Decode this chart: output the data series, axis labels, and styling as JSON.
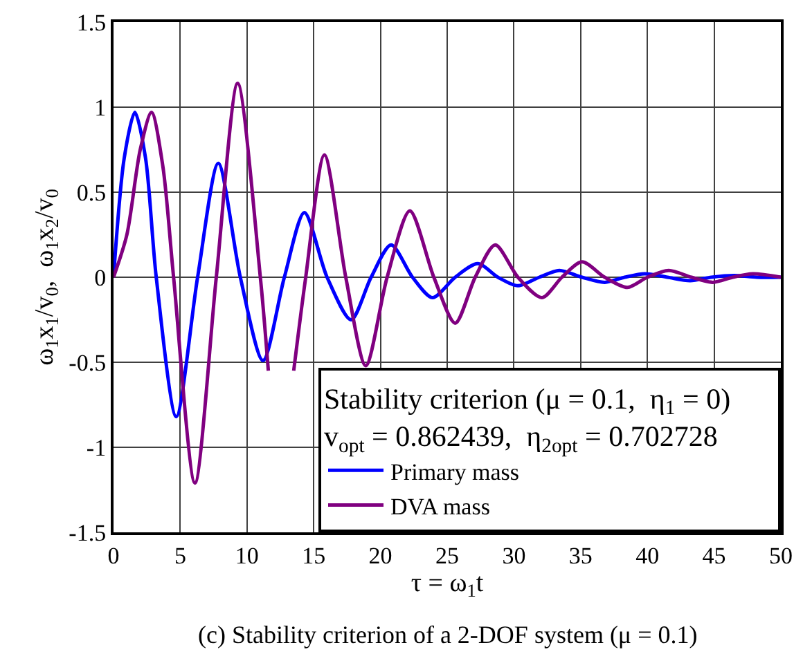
{
  "chart_data": {
    "type": "line",
    "xlabel": "τ = ω$_{1}$t",
    "ylabel": "ω$_{1}$x$_{1}$/v$_{0}$,  ω$_{1}$x$_{2}$/v$_{0}$",
    "legend_title": "Stability criterion (μ = 0.1,  η$_{1}$ = 0)\nv$_{opt}$ = 0.862439,  η$_{2opt}$ = 0.702728",
    "annotations": [
      "(c) Stability criterion of a 2-DOF system (μ = 0.1)"
    ],
    "series": [
      {
        "name": "Primary mass",
        "color": "#0000ff",
        "x": [
          0,
          0.8,
          1.6,
          2.4,
          3.2,
          4.7,
          6.3,
          7.85,
          9.5,
          11.2,
          12.8,
          14.3,
          16.0,
          17.8,
          19.3,
          20.8,
          22.4,
          23.9,
          25.6,
          27.3,
          28.8,
          30.3,
          31.9,
          33.4,
          35.1,
          36.8,
          38.3,
          39.8,
          41.5,
          43.2,
          44.8,
          46.5,
          48.2,
          50
        ],
        "values": [
          0,
          0.7,
          0.97,
          0.7,
          0,
          -0.82,
          0,
          0.67,
          0,
          -0.49,
          0,
          0.38,
          0,
          -0.25,
          0,
          0.19,
          0,
          -0.12,
          0,
          0.08,
          0,
          -0.05,
          0,
          0.04,
          0,
          -0.03,
          0,
          0.02,
          0,
          -0.02,
          0,
          0.01,
          0,
          0
        ]
      },
      {
        "name": "DVA mass",
        "color": "#800080",
        "x": [
          0,
          1.0,
          2.0,
          2.85,
          3.7,
          4.5,
          6.1,
          7.7,
          9.3,
          11.0,
          11.6,
          12.5,
          13.5,
          14.4,
          15.8,
          17.4,
          18.9,
          20.5,
          22.2,
          24.0,
          25.6,
          27.1,
          28.6,
          30.3,
          32.1,
          33.6,
          35.1,
          36.8,
          38.5,
          40.0,
          41.6,
          43.3,
          44.9,
          46.4,
          47.9,
          50
        ],
        "values": [
          0,
          0.25,
          0.75,
          0.97,
          0.65,
          0,
          -1.21,
          0,
          1.14,
          0,
          -0.55,
          null,
          -0.55,
          0,
          0.72,
          0,
          -0.52,
          0,
          0.39,
          0,
          -0.27,
          0,
          0.19,
          0,
          -0.12,
          0,
          0.09,
          0,
          -0.06,
          0,
          0.04,
          0,
          -0.03,
          0,
          0.02,
          0
        ]
      }
    ],
    "xlim": [
      0,
      50
    ],
    "xticks": [
      0,
      5,
      10,
      15,
      20,
      25,
      30,
      35,
      40,
      45,
      50
    ],
    "ylim": [
      -1.5,
      1.5
    ],
    "yticks": [
      -1.5,
      -1,
      -0.5,
      0,
      0.5,
      1,
      1.5
    ],
    "grid": true,
    "legend": "bottom right",
    "marker": "none",
    "line_style": "solid"
  }
}
